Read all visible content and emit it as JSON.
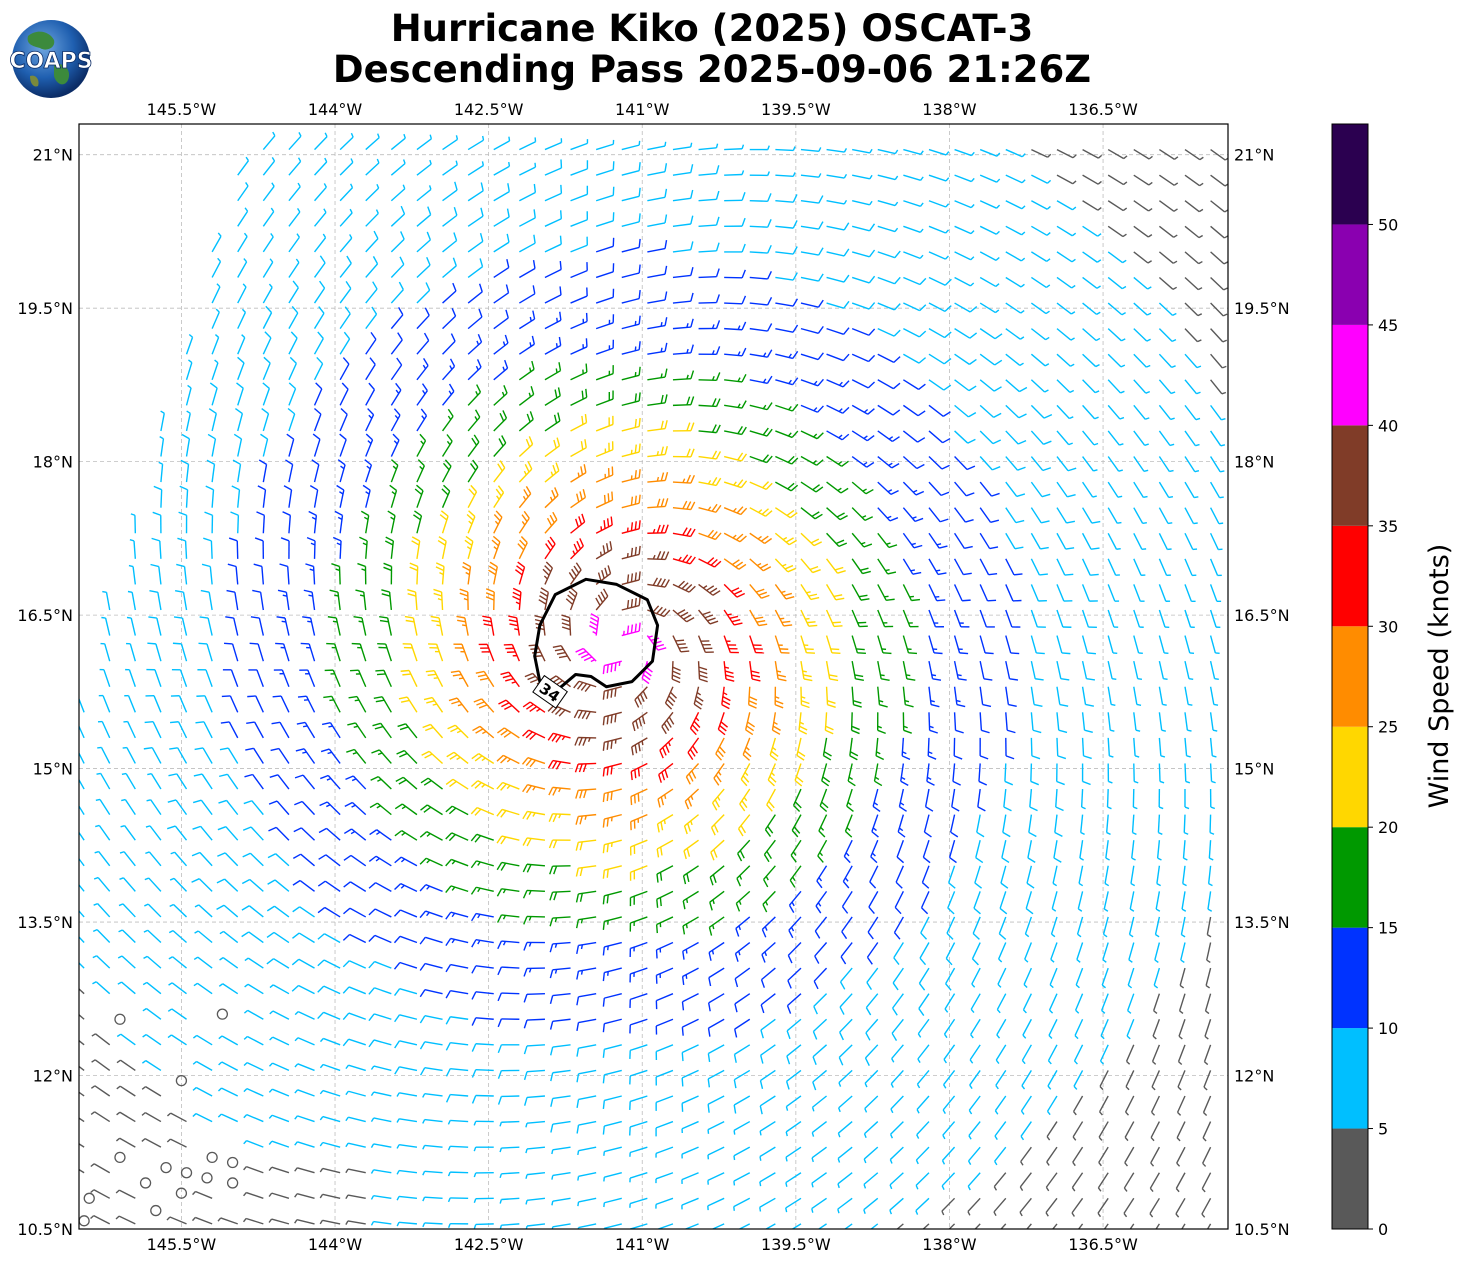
{
  "header": {
    "title_line1": "Hurricane Kiko (2025) OSCAT-3",
    "title_line2": "Descending Pass 2025-09-06 21:26Z",
    "logo_text": "COAPS"
  },
  "map": {
    "lon_range": [
      -146.5,
      -135.28
    ],
    "lat_range": [
      10.5,
      21.3
    ],
    "lon_ticks": [
      {
        "value": -145.5,
        "label": "145.5°W"
      },
      {
        "value": -144.0,
        "label": "144°W"
      },
      {
        "value": -142.5,
        "label": "142.5°W"
      },
      {
        "value": -141.0,
        "label": "141°W"
      },
      {
        "value": -139.5,
        "label": "139.5°W"
      },
      {
        "value": -138.0,
        "label": "138°W"
      },
      {
        "value": -136.5,
        "label": "136.5°W"
      }
    ],
    "lat_ticks": [
      {
        "value": 21.0,
        "label": "21°N"
      },
      {
        "value": 19.5,
        "label": "19.5°N"
      },
      {
        "value": 18.0,
        "label": "18°N"
      },
      {
        "value": 16.5,
        "label": "16.5°N"
      },
      {
        "value": 15.0,
        "label": "15°N"
      },
      {
        "value": 13.5,
        "label": "13.5°N"
      },
      {
        "value": 12.0,
        "label": "12°N"
      },
      {
        "value": 10.5,
        "label": "10.5°N"
      }
    ],
    "gridlines": true,
    "storm_center": {
      "lon": -141.2,
      "lat": 16.2
    },
    "contour": {
      "label": "34",
      "value_knots": 34,
      "points": [
        [
          -141.55,
          16.85
        ],
        [
          -141.25,
          16.8
        ],
        [
          -140.95,
          16.65
        ],
        [
          -140.85,
          16.4
        ],
        [
          -140.9,
          16.05
        ],
        [
          -141.1,
          15.85
        ],
        [
          -141.35,
          15.8
        ],
        [
          -141.5,
          15.9
        ],
        [
          -141.65,
          15.92
        ],
        [
          -141.85,
          15.75
        ],
        [
          -142.0,
          15.85
        ],
        [
          -142.05,
          16.1
        ],
        [
          -142.0,
          16.4
        ],
        [
          -141.85,
          16.7
        ]
      ]
    },
    "light_wind_circles": [
      {
        "lon": -146.1,
        "lat": 12.55
      },
      {
        "lon": -145.1,
        "lat": 12.6
      },
      {
        "lon": -145.5,
        "lat": 11.95
      },
      {
        "lon": -146.1,
        "lat": 11.2
      },
      {
        "lon": -145.85,
        "lat": 10.95
      },
      {
        "lon": -145.65,
        "lat": 11.1
      },
      {
        "lon": -145.45,
        "lat": 11.05
      },
      {
        "lon": -145.2,
        "lat": 11.2
      },
      {
        "lon": -145.0,
        "lat": 11.15
      },
      {
        "lon": -145.25,
        "lat": 11.0
      },
      {
        "lon": -145.5,
        "lat": 10.85
      },
      {
        "lon": -146.4,
        "lat": 10.8
      },
      {
        "lon": -146.45,
        "lat": 10.58
      },
      {
        "lon": -145.75,
        "lat": 10.68
      },
      {
        "lon": -145.0,
        "lat": 10.95
      }
    ]
  },
  "colorbar": {
    "label": "Wind Speed (knots)",
    "bins": [
      {
        "min": 0,
        "max": 5,
        "color": "#595959"
      },
      {
        "min": 5,
        "max": 10,
        "color": "#00bfff"
      },
      {
        "min": 10,
        "max": 15,
        "color": "#0033ff"
      },
      {
        "min": 15,
        "max": 20,
        "color": "#009900"
      },
      {
        "min": 20,
        "max": 25,
        "color": "#ffd700"
      },
      {
        "min": 25,
        "max": 30,
        "color": "#ff8c00"
      },
      {
        "min": 30,
        "max": 35,
        "color": "#ff0000"
      },
      {
        "min": 35,
        "max": 40,
        "color": "#803c28"
      },
      {
        "min": 40,
        "max": 45,
        "color": "#ff00ff"
      },
      {
        "min": 45,
        "max": 50,
        "color": "#8a00b0"
      },
      {
        "min": 50,
        "max": 55,
        "color": "#2b0050"
      }
    ],
    "tick_labels": [
      "0",
      "5",
      "10",
      "15",
      "20",
      "25",
      "30",
      "35",
      "40",
      "45",
      "50"
    ]
  }
}
